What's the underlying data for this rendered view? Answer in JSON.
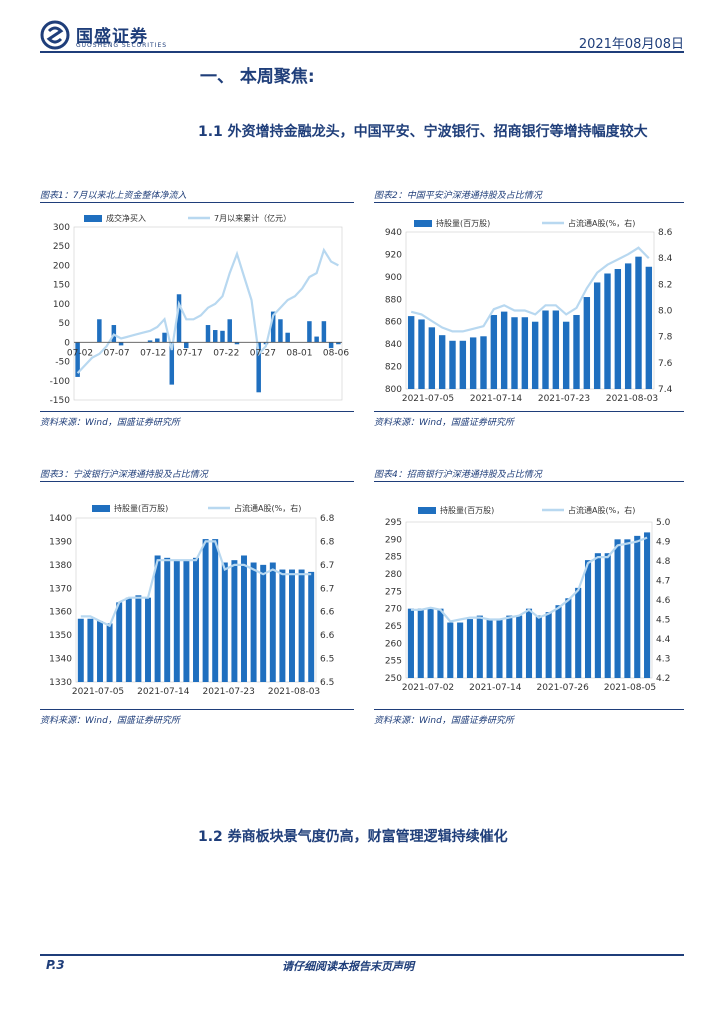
{
  "header": {
    "brand": "国盛证券",
    "brand_sub": "GUOSHENG SECURITIES",
    "date": "2021年08月08日"
  },
  "section_title": "一、  本周聚焦:",
  "heading_1_1": "1.1 外资增持金融龙头，中国平安、宁波银行、招商银行等增持幅度较大",
  "heading_1_2": "1.2 券商板块景气度仍高，财富管理逻辑持续催化",
  "footer": {
    "page": "P.3",
    "disclaimer": "请仔细阅读本报告末页声明"
  },
  "colors": {
    "bar": "#1f6fbf",
    "line": "#b8d8f0",
    "brand": "#1f3e7a"
  },
  "chart_data": [
    {
      "id": "c1",
      "type": "bar",
      "title": "图表1：7月以来北上资金整体净流入",
      "source": "资料来源：Wind，国盛证券研究所",
      "legend_bar": "成交净买入",
      "legend_line": "7月以来累计（亿元）",
      "x_labels": [
        "07-02",
        "07-07",
        "07-12",
        "07-17",
        "07-22",
        "07-27",
        "08-01",
        "08-06"
      ],
      "ylim": [
        -150,
        300
      ],
      "y_ticks": [
        -150,
        -100,
        -50,
        0,
        50,
        100,
        150,
        200,
        250,
        300
      ],
      "bars": [
        -90,
        0,
        0,
        60,
        0,
        45,
        -8,
        0,
        0,
        0,
        5,
        10,
        25,
        -110,
        125,
        -15,
        0,
        0,
        45,
        32,
        30,
        60,
        -5,
        0,
        0,
        -130,
        -5,
        80,
        60,
        25,
        0,
        0,
        55,
        15,
        55,
        -15,
        -5
      ],
      "line": [
        -80,
        -60,
        -40,
        -30,
        -10,
        20,
        10,
        15,
        20,
        25,
        30,
        40,
        60,
        -20,
        100,
        60,
        60,
        70,
        90,
        100,
        120,
        180,
        230,
        170,
        110,
        -30,
        -10,
        70,
        90,
        110,
        120,
        140,
        170,
        180,
        240,
        210,
        200
      ]
    },
    {
      "id": "c2",
      "type": "bar",
      "title": "图表2：中国平安沪深港通持股及占比情况",
      "source": "资料来源：Wind，国盛证券研究所",
      "legend_bar": "持股量(百万股)",
      "legend_line": "占流通A股(%，右)",
      "x_labels": [
        "2021-07-05",
        "2021-07-14",
        "2021-07-23",
        "2021-08-03"
      ],
      "ylim": [
        800,
        940
      ],
      "y_ticks": [
        800,
        820,
        840,
        860,
        880,
        900,
        920,
        940
      ],
      "y2lim": [
        7.4,
        8.6
      ],
      "y2_ticks": [
        "7.4",
        "7.6",
        "7.8",
        "8.0",
        "8.2",
        "8.4",
        "8.6"
      ],
      "bars": [
        865,
        862,
        855,
        848,
        843,
        843,
        846,
        847,
        866,
        869,
        864,
        864,
        860,
        870,
        870,
        860,
        866,
        882,
        895,
        903,
        907,
        912,
        918,
        909
      ],
      "line": [
        7.99,
        7.97,
        7.92,
        7.87,
        7.84,
        7.84,
        7.86,
        7.88,
        8.01,
        8.04,
        8.0,
        8.0,
        7.97,
        8.04,
        8.04,
        7.97,
        8.02,
        8.17,
        8.29,
        8.35,
        8.39,
        8.43,
        8.48,
        8.4
      ]
    },
    {
      "id": "c3",
      "type": "bar",
      "title": "图表3：宁波银行沪深港通持股及占比情况",
      "source": "资料来源：Wind，国盛证券研究所",
      "legend_bar": "持股量(百万股)",
      "legend_line": "占流通A股(%，右)",
      "x_labels": [
        "2021-07-05",
        "2021-07-14",
        "2021-07-23",
        "2021-08-03"
      ],
      "ylim": [
        1330,
        1400
      ],
      "y_ticks": [
        1330,
        1340,
        1350,
        1360,
        1370,
        1380,
        1390,
        1400
      ],
      "y2lim": [
        6.45,
        6.8
      ],
      "y2_ticks": [
        "6.5",
        "6.5",
        "6.6",
        "6.6",
        "6.7",
        "6.7",
        "6.8",
        "6.8"
      ],
      "bars": [
        1357,
        1357,
        1356,
        1355,
        1364,
        1366,
        1367,
        1366,
        1384,
        1383,
        1382,
        1382,
        1383,
        1391,
        1391,
        1381,
        1382,
        1384,
        1381,
        1380,
        1381,
        1378,
        1378,
        1378,
        1377
      ],
      "line": [
        6.59,
        6.59,
        6.58,
        6.57,
        6.62,
        6.63,
        6.63,
        6.63,
        6.71,
        6.71,
        6.71,
        6.71,
        6.71,
        6.75,
        6.75,
        6.69,
        6.7,
        6.7,
        6.69,
        6.68,
        6.69,
        6.68,
        6.68,
        6.68,
        6.68
      ]
    },
    {
      "id": "c4",
      "type": "bar",
      "title": "图表4：招商银行沪深港通持股及占比情况",
      "source": "资料来源：Wind，国盛证券研究所",
      "legend_bar": "持股量(百万股)",
      "legend_line": "占流通A股(%，右)",
      "x_labels": [
        "2021-07-02",
        "2021-07-14",
        "2021-07-26",
        "2021-08-05"
      ],
      "ylim": [
        250,
        295
      ],
      "y_ticks": [
        250,
        255,
        260,
        265,
        270,
        275,
        280,
        285,
        290,
        295
      ],
      "y2lim": [
        4.2,
        5.0
      ],
      "y2_ticks": [
        "4.2",
        "4.3",
        "4.4",
        "4.5",
        "4.6",
        "4.7",
        "4.8",
        "4.9",
        "5.0"
      ],
      "bars": [
        270,
        270,
        270,
        270,
        266,
        266,
        267,
        268,
        267,
        267,
        268,
        268,
        270,
        268,
        269,
        271,
        273,
        276,
        284,
        286,
        286,
        290,
        290,
        291,
        292
      ],
      "line": [
        4.55,
        4.55,
        4.56,
        4.55,
        4.49,
        4.5,
        4.51,
        4.51,
        4.5,
        4.5,
        4.51,
        4.52,
        4.55,
        4.51,
        4.53,
        4.56,
        4.6,
        4.65,
        4.79,
        4.82,
        4.82,
        4.88,
        4.89,
        4.9,
        4.92
      ]
    }
  ]
}
